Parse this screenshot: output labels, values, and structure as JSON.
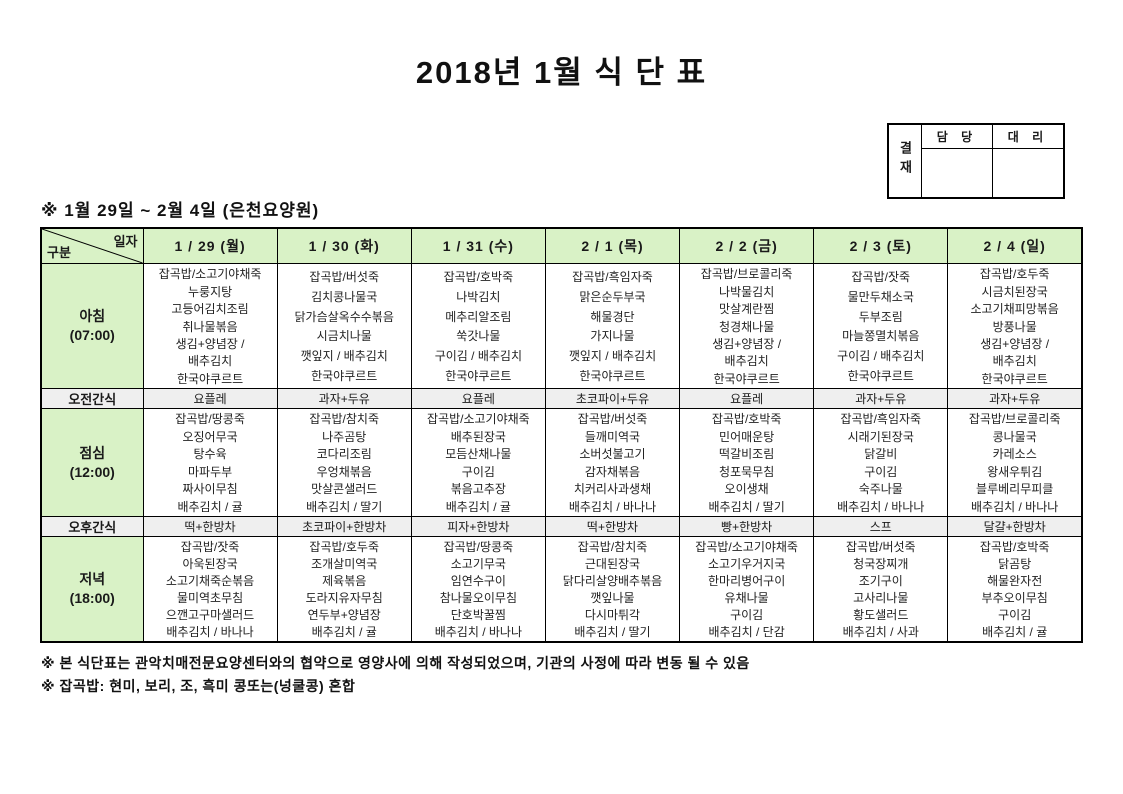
{
  "title": "2018년 1월 식 단 표",
  "approval": {
    "stamp_label": "결재",
    "headers": [
      "담 당",
      "대 리"
    ]
  },
  "subtitle": "※ 1월 29일 ~ 2월 4일 (은천요양원)",
  "colors": {
    "header_green": "#d9f2c6",
    "snack_gray": "#efefef",
    "border": "#000000"
  },
  "table": {
    "corner": {
      "top": "일자",
      "bottom": "구분"
    },
    "dates": [
      "1 / 29 (월)",
      "1 / 30 (화)",
      "1 / 31 (수)",
      "2 / 1 (목)",
      "2 / 2 (금)",
      "2 / 3 (토)",
      "2 / 4 (일)"
    ],
    "rows": [
      {
        "key": "breakfast",
        "label": "아침",
        "time": "(07:00)",
        "cells": [
          [
            "잡곡밥/소고기야채죽",
            "누룽지탕",
            "고등어김치조림",
            "취나물볶음",
            "생김+양념장 /",
            "배추김치",
            "한국야쿠르트"
          ],
          [
            "잡곡밥/버섯죽",
            "김치콩나물국",
            "닭가슴살옥수수볶음",
            "시금치나물",
            "깻잎지 / 배추김치",
            "한국야쿠르트"
          ],
          [
            "잡곡밥/호박죽",
            "나박김치",
            "메추리알조림",
            "쑥갓나물",
            "구이김 / 배추김치",
            "한국야쿠르트"
          ],
          [
            "잡곡밥/흑임자죽",
            "맑은순두부국",
            "해물경단",
            "가지나물",
            "깻잎지 / 배추김치",
            "한국야쿠르트"
          ],
          [
            "잡곡밥/브로콜리죽",
            "나박물김치",
            "맛살계란찜",
            "청경채나물",
            "생김+양념장 /",
            "배추김치",
            "한국야쿠르트"
          ],
          [
            "잡곡밥/잣죽",
            "물만두채소국",
            "두부조림",
            "마늘쫑멸치볶음",
            "구이김 / 배추김치",
            "한국야쿠르트"
          ],
          [
            "잡곡밥/호두죽",
            "시금치된장국",
            "소고기채피망볶음",
            "방풍나물",
            "생김+양념장 /",
            "배추김치",
            "한국야쿠르트"
          ]
        ]
      },
      {
        "key": "am-snack",
        "label": "오전간식",
        "cells": [
          "요플레",
          "과자+두유",
          "요플레",
          "초코파이+두유",
          "요플레",
          "과자+두유",
          "과자+두유"
        ]
      },
      {
        "key": "lunch",
        "label": "점심",
        "time": "(12:00)",
        "cells": [
          [
            "잡곡밥/땅콩죽",
            "오징어무국",
            "탕수육",
            "마파두부",
            "짜사이무침",
            "배추김치 / 귤"
          ],
          [
            "잡곡밥/참치죽",
            "나주곰탕",
            "코다리조림",
            "우엉채볶음",
            "맛살콘샐러드",
            "배추김치 / 딸기"
          ],
          [
            "잡곡밥/소고기야채죽",
            "배추된장국",
            "모듬산채나물",
            "구이김",
            "볶음고추장",
            "배추김치 / 귤"
          ],
          [
            "잡곡밥/버섯죽",
            "들깨미역국",
            "소버섯불고기",
            "감자채볶음",
            "치커리사과생채",
            "배추김치 / 바나나"
          ],
          [
            "잡곡밥/호박죽",
            "민어매운탕",
            "떡갈비조림",
            "청포묵무침",
            "오이생채",
            "배추김치 / 딸기"
          ],
          [
            "잡곡밥/흑임자죽",
            "시래기된장국",
            "닭갈비",
            "구이김",
            "숙주나물",
            "배추김치 / 바나나"
          ],
          [
            "잡곡밥/브로콜리죽",
            "콩나물국",
            "카레소스",
            "왕새우튀김",
            "블루베리무피클",
            "배추김치 / 바나나"
          ]
        ]
      },
      {
        "key": "pm-snack",
        "label": "오후간식",
        "cells": [
          "떡+한방차",
          "초코파이+한방차",
          "피자+한방차",
          "떡+한방차",
          "빵+한방차",
          "스프",
          "달걀+한방차"
        ]
      },
      {
        "key": "dinner",
        "label": "저녁",
        "time": "(18:00)",
        "cells": [
          [
            "잡곡밥/잣죽",
            "아욱된장국",
            "소고기채죽순볶음",
            "물미역초무침",
            "으깬고구마샐러드",
            "배추김치 / 바나나"
          ],
          [
            "잡곡밥/호두죽",
            "조개살미역국",
            "제육볶음",
            "도라지유자무침",
            "연두부+양념장",
            "배추김치 / 귤"
          ],
          [
            "잡곡밥/땅콩죽",
            "소고기무국",
            "임연수구이",
            "참나물오이무침",
            "단호박꿀찜",
            "배추김치 / 바나나"
          ],
          [
            "잡곡밥/참치죽",
            "근대된장국",
            "닭다리살양배추볶음",
            "깻잎나물",
            "다시마튀각",
            "배추김치 / 딸기"
          ],
          [
            "잡곡밥/소고기야채죽",
            "소고기우거지국",
            "한마리병어구이",
            "유채나물",
            "구이김",
            "배추김치 / 단감"
          ],
          [
            "잡곡밥/버섯죽",
            "청국장찌개",
            "조기구이",
            "고사리나물",
            "황도샐러드",
            "배추김치 / 사과"
          ],
          [
            "잡곡밥/호박죽",
            "닭곰탕",
            "해물완자전",
            "부추오이무침",
            "구이김",
            "배추김치 / 귤"
          ]
        ]
      }
    ]
  },
  "notes": [
    "※ 본 식단표는 관악치매전문요양센터와의 협약으로 영양사에 의해 작성되었으며, 기관의 사정에 따라 변동 될 수 있음",
    "※ 잡곡밥: 현미, 보리, 조, 흑미 콩또는(넝쿨콩) 혼합"
  ]
}
